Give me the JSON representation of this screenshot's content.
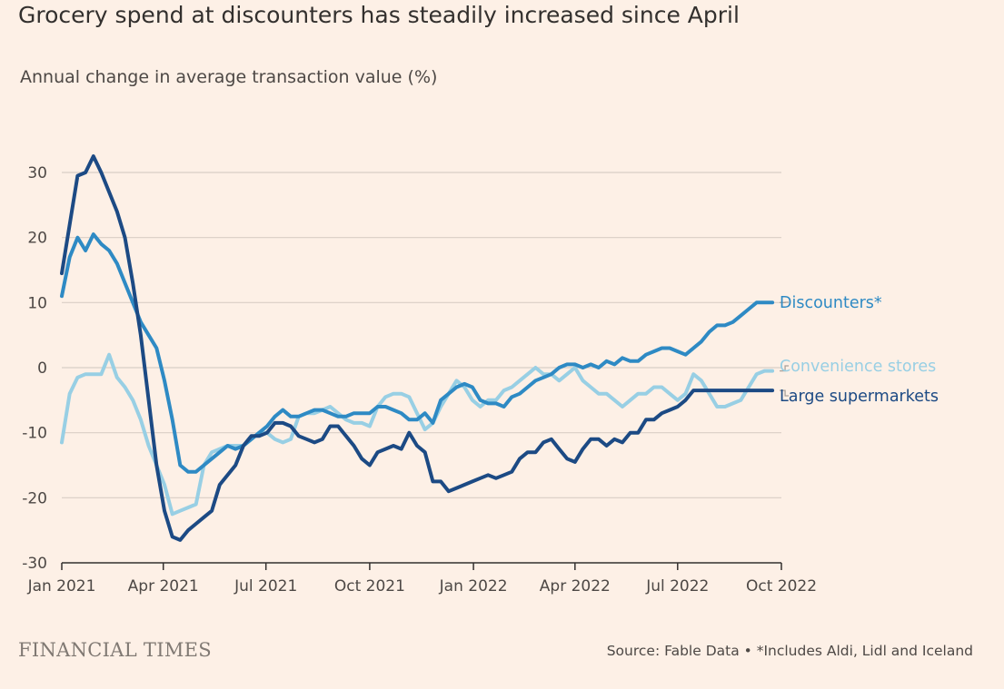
{
  "title": "Grocery spend at discounters has steadily increased since April",
  "subtitle": "Annual change in average transaction value (%)",
  "brand": "FINANCIAL TIMES",
  "source": "Source: Fable Data • *Includes Aldi, Lidl and Iceland",
  "chart_data": {
    "type": "line",
    "title": "Grocery spend at discounters has steadily increased since April",
    "subtitle": "Annual change in average transaction value (%)",
    "xlabel": "",
    "ylabel": "",
    "xlim": [
      "2021-01-01",
      "2022-10-01"
    ],
    "ylim": [
      -30,
      30
    ],
    "yticks": [
      30,
      20,
      10,
      0,
      -10,
      -20,
      -30
    ],
    "ytick_labels": [
      "30",
      "20",
      "10",
      "0",
      "-10",
      "-20",
      "-30"
    ],
    "xticks": [
      "2021-01-01",
      "2021-04-01",
      "2021-07-01",
      "2021-10-01",
      "2022-01-01",
      "2022-04-01",
      "2022-07-01",
      "2022-10-01"
    ],
    "xtick_labels": [
      "Jan 2021",
      "Apr 2021",
      "Jul 2021",
      "Oct 2021",
      "Jan 2022",
      "Apr 2022",
      "Jul 2022",
      "Oct 2022"
    ],
    "grid": true,
    "legend": "direct labels at right",
    "series": [
      {
        "name": "Discounters*",
        "color": "#2e8ac4",
        "x": [
          "2021-01-01",
          "2021-01-08",
          "2021-01-15",
          "2021-01-22",
          "2021-01-29",
          "2021-02-05",
          "2021-02-12",
          "2021-02-19",
          "2021-02-26",
          "2021-03-05",
          "2021-03-12",
          "2021-03-19",
          "2021-03-26",
          "2021-04-02",
          "2021-04-09",
          "2021-04-16",
          "2021-04-23",
          "2021-04-30",
          "2021-05-07",
          "2021-05-14",
          "2021-05-21",
          "2021-05-28",
          "2021-06-04",
          "2021-06-11",
          "2021-06-18",
          "2021-06-25",
          "2021-07-02",
          "2021-07-09",
          "2021-07-16",
          "2021-07-23",
          "2021-07-30",
          "2021-08-06",
          "2021-08-13",
          "2021-08-20",
          "2021-08-27",
          "2021-09-03",
          "2021-09-10",
          "2021-09-17",
          "2021-09-24",
          "2021-10-01",
          "2021-10-08",
          "2021-10-15",
          "2021-10-22",
          "2021-10-29",
          "2021-11-05",
          "2021-11-12",
          "2021-11-19",
          "2021-11-26",
          "2021-12-03",
          "2021-12-10",
          "2021-12-17",
          "2021-12-24",
          "2021-12-31",
          "2022-01-07",
          "2022-01-14",
          "2022-01-21",
          "2022-01-28",
          "2022-02-04",
          "2022-02-11",
          "2022-02-18",
          "2022-02-25",
          "2022-03-04",
          "2022-03-11",
          "2022-03-18",
          "2022-03-25",
          "2022-04-01",
          "2022-04-08",
          "2022-04-15",
          "2022-04-22",
          "2022-04-29",
          "2022-05-06",
          "2022-05-13",
          "2022-05-20",
          "2022-05-27",
          "2022-06-03",
          "2022-06-10",
          "2022-06-17",
          "2022-06-24",
          "2022-07-01",
          "2022-07-08",
          "2022-07-15",
          "2022-07-22",
          "2022-07-29",
          "2022-08-05",
          "2022-08-12",
          "2022-08-19",
          "2022-08-26",
          "2022-09-02",
          "2022-09-09",
          "2022-09-16",
          "2022-09-23"
        ],
        "y": [
          11,
          17,
          20,
          18,
          20.5,
          19,
          18,
          16,
          13,
          10,
          7,
          5,
          3,
          -2,
          -8,
          -15,
          -16,
          -16,
          -15,
          -14,
          -13,
          -12,
          -12.5,
          -12,
          -11,
          -10,
          -9,
          -7.5,
          -6.5,
          -7.5,
          -7.5,
          -7,
          -6.5,
          -6.5,
          -7,
          -7.5,
          -7.5,
          -7,
          -7,
          -7,
          -6,
          -6,
          -6.5,
          -7,
          -8,
          -8,
          -7,
          -8.5,
          -5,
          -4,
          -3,
          -2.5,
          -3,
          -5,
          -5.5,
          -5.5,
          -6,
          -4.5,
          -4,
          -3,
          -2,
          -1.5,
          -1,
          0,
          0.5,
          0.5,
          0,
          0.5,
          0,
          1,
          0.5,
          1.5,
          1,
          1,
          2,
          2.5,
          3,
          3,
          2.5,
          2,
          3,
          4,
          5.5,
          6.5,
          6.5,
          7,
          8,
          9,
          10,
          10,
          10
        ],
        "end_label": "Discounters*"
      },
      {
        "name": "Convenience stores",
        "color": "#98cfe4",
        "x": [
          "2021-01-01",
          "2021-01-08",
          "2021-01-15",
          "2021-01-22",
          "2021-01-29",
          "2021-02-05",
          "2021-02-12",
          "2021-02-19",
          "2021-02-26",
          "2021-03-05",
          "2021-03-12",
          "2021-03-19",
          "2021-03-26",
          "2021-04-02",
          "2021-04-09",
          "2021-04-16",
          "2021-04-23",
          "2021-04-30",
          "2021-05-07",
          "2021-05-14",
          "2021-05-21",
          "2021-05-28",
          "2021-06-04",
          "2021-06-11",
          "2021-06-18",
          "2021-06-25",
          "2021-07-02",
          "2021-07-09",
          "2021-07-16",
          "2021-07-23",
          "2021-07-30",
          "2021-08-06",
          "2021-08-13",
          "2021-08-20",
          "2021-08-27",
          "2021-09-03",
          "2021-09-10",
          "2021-09-17",
          "2021-09-24",
          "2021-10-01",
          "2021-10-08",
          "2021-10-15",
          "2021-10-22",
          "2021-10-29",
          "2021-11-05",
          "2021-11-12",
          "2021-11-19",
          "2021-11-26",
          "2021-12-03",
          "2021-12-10",
          "2021-12-17",
          "2021-12-24",
          "2021-12-31",
          "2022-01-07",
          "2022-01-14",
          "2022-01-21",
          "2022-01-28",
          "2022-02-04",
          "2022-02-11",
          "2022-02-18",
          "2022-02-25",
          "2022-03-04",
          "2022-03-11",
          "2022-03-18",
          "2022-03-25",
          "2022-04-01",
          "2022-04-08",
          "2022-04-15",
          "2022-04-22",
          "2022-04-29",
          "2022-05-06",
          "2022-05-13",
          "2022-05-20",
          "2022-05-27",
          "2022-06-03",
          "2022-06-10",
          "2022-06-17",
          "2022-06-24",
          "2022-07-01",
          "2022-07-08",
          "2022-07-15",
          "2022-07-22",
          "2022-07-29",
          "2022-08-05",
          "2022-08-12",
          "2022-08-19",
          "2022-08-26",
          "2022-09-02",
          "2022-09-09",
          "2022-09-16",
          "2022-09-23"
        ],
        "y": [
          -11.5,
          -4,
          -1.5,
          -1,
          -1,
          -1,
          2,
          -1.5,
          -3,
          -5,
          -8,
          -12,
          -15,
          -18,
          -22.5,
          -22,
          -21.5,
          -21,
          -15,
          -13,
          -12.5,
          -12,
          -12,
          -12,
          -11,
          -10,
          -10,
          -11,
          -11.5,
          -11,
          -7.5,
          -7,
          -7,
          -6.5,
          -6,
          -7,
          -8,
          -8.5,
          -8.5,
          -9,
          -6,
          -4.5,
          -4,
          -4,
          -4.5,
          -7,
          -9.5,
          -8.5,
          -6,
          -4,
          -2,
          -3,
          -5,
          -6,
          -5,
          -5,
          -3.5,
          -3,
          -2,
          -1,
          0,
          -1,
          -1,
          -2,
          -1,
          0,
          -2,
          -3,
          -4,
          -4,
          -5,
          -6,
          -5,
          -4,
          -4,
          -3,
          -3,
          -4,
          -5,
          -4,
          -1,
          -2,
          -4,
          -6,
          -6,
          -5.5,
          -5,
          -3,
          -1,
          -0.5,
          -0.5
        ],
        "end_label": "Convenience stores"
      },
      {
        "name": "Large supermarkets",
        "color": "#1c4a84",
        "x": [
          "2021-01-01",
          "2021-01-08",
          "2021-01-15",
          "2021-01-22",
          "2021-01-29",
          "2021-02-05",
          "2021-02-12",
          "2021-02-19",
          "2021-02-26",
          "2021-03-05",
          "2021-03-12",
          "2021-03-19",
          "2021-03-26",
          "2021-04-02",
          "2021-04-09",
          "2021-04-16",
          "2021-04-23",
          "2021-04-30",
          "2021-05-07",
          "2021-05-14",
          "2021-05-21",
          "2021-05-28",
          "2021-06-04",
          "2021-06-11",
          "2021-06-18",
          "2021-06-25",
          "2021-07-02",
          "2021-07-09",
          "2021-07-16",
          "2021-07-23",
          "2021-07-30",
          "2021-08-06",
          "2021-08-13",
          "2021-08-20",
          "2021-08-27",
          "2021-09-03",
          "2021-09-10",
          "2021-09-17",
          "2021-09-24",
          "2021-10-01",
          "2021-10-08",
          "2021-10-15",
          "2021-10-22",
          "2021-10-29",
          "2021-11-05",
          "2021-11-12",
          "2021-11-19",
          "2021-11-26",
          "2021-12-03",
          "2021-12-10",
          "2021-12-17",
          "2021-12-24",
          "2021-12-31",
          "2022-01-07",
          "2022-01-14",
          "2022-01-21",
          "2022-01-28",
          "2022-02-04",
          "2022-02-11",
          "2022-02-18",
          "2022-02-25",
          "2022-03-04",
          "2022-03-11",
          "2022-03-18",
          "2022-03-25",
          "2022-04-01",
          "2022-04-08",
          "2022-04-15",
          "2022-04-22",
          "2022-04-29",
          "2022-05-06",
          "2022-05-13",
          "2022-05-20",
          "2022-05-27",
          "2022-06-03",
          "2022-06-10",
          "2022-06-17",
          "2022-06-24",
          "2022-07-01",
          "2022-07-08",
          "2022-07-15",
          "2022-07-22",
          "2022-07-29",
          "2022-08-05",
          "2022-08-12",
          "2022-08-19",
          "2022-08-26",
          "2022-09-02",
          "2022-09-09",
          "2022-09-16",
          "2022-09-23"
        ],
        "y": [
          14.5,
          22,
          29.5,
          30,
          32.5,
          30,
          27,
          24,
          20,
          13,
          5,
          -5,
          -15,
          -22,
          -26,
          -26.5,
          -25,
          -24,
          -23,
          -22,
          -18,
          -16.5,
          -15,
          -12,
          -10.5,
          -10.5,
          -10,
          -8.5,
          -8.5,
          -9,
          -10.5,
          -11,
          -11.5,
          -11,
          -9,
          -9,
          -10.5,
          -12,
          -14,
          -15,
          -13,
          -12.5,
          -12,
          -12.5,
          -10,
          -12,
          -13,
          -17.5,
          -17.5,
          -19,
          -18.5,
          -18,
          -17.5,
          -17,
          -16.5,
          -17,
          -16.5,
          -16,
          -14,
          -13,
          -13,
          -11.5,
          -11,
          -12.5,
          -14,
          -14.5,
          -12.5,
          -11,
          -11,
          -12,
          -11,
          -11.5,
          -10,
          -10,
          -8,
          -8,
          -7,
          -6.5,
          -6,
          -5,
          -3.5,
          -3.5,
          -3.5,
          -3.5,
          -3.5,
          -3.5,
          -3.5,
          -3.5,
          -3.5,
          -3.5,
          -3.5
        ],
        "end_label": "Large supermarkets"
      }
    ]
  }
}
